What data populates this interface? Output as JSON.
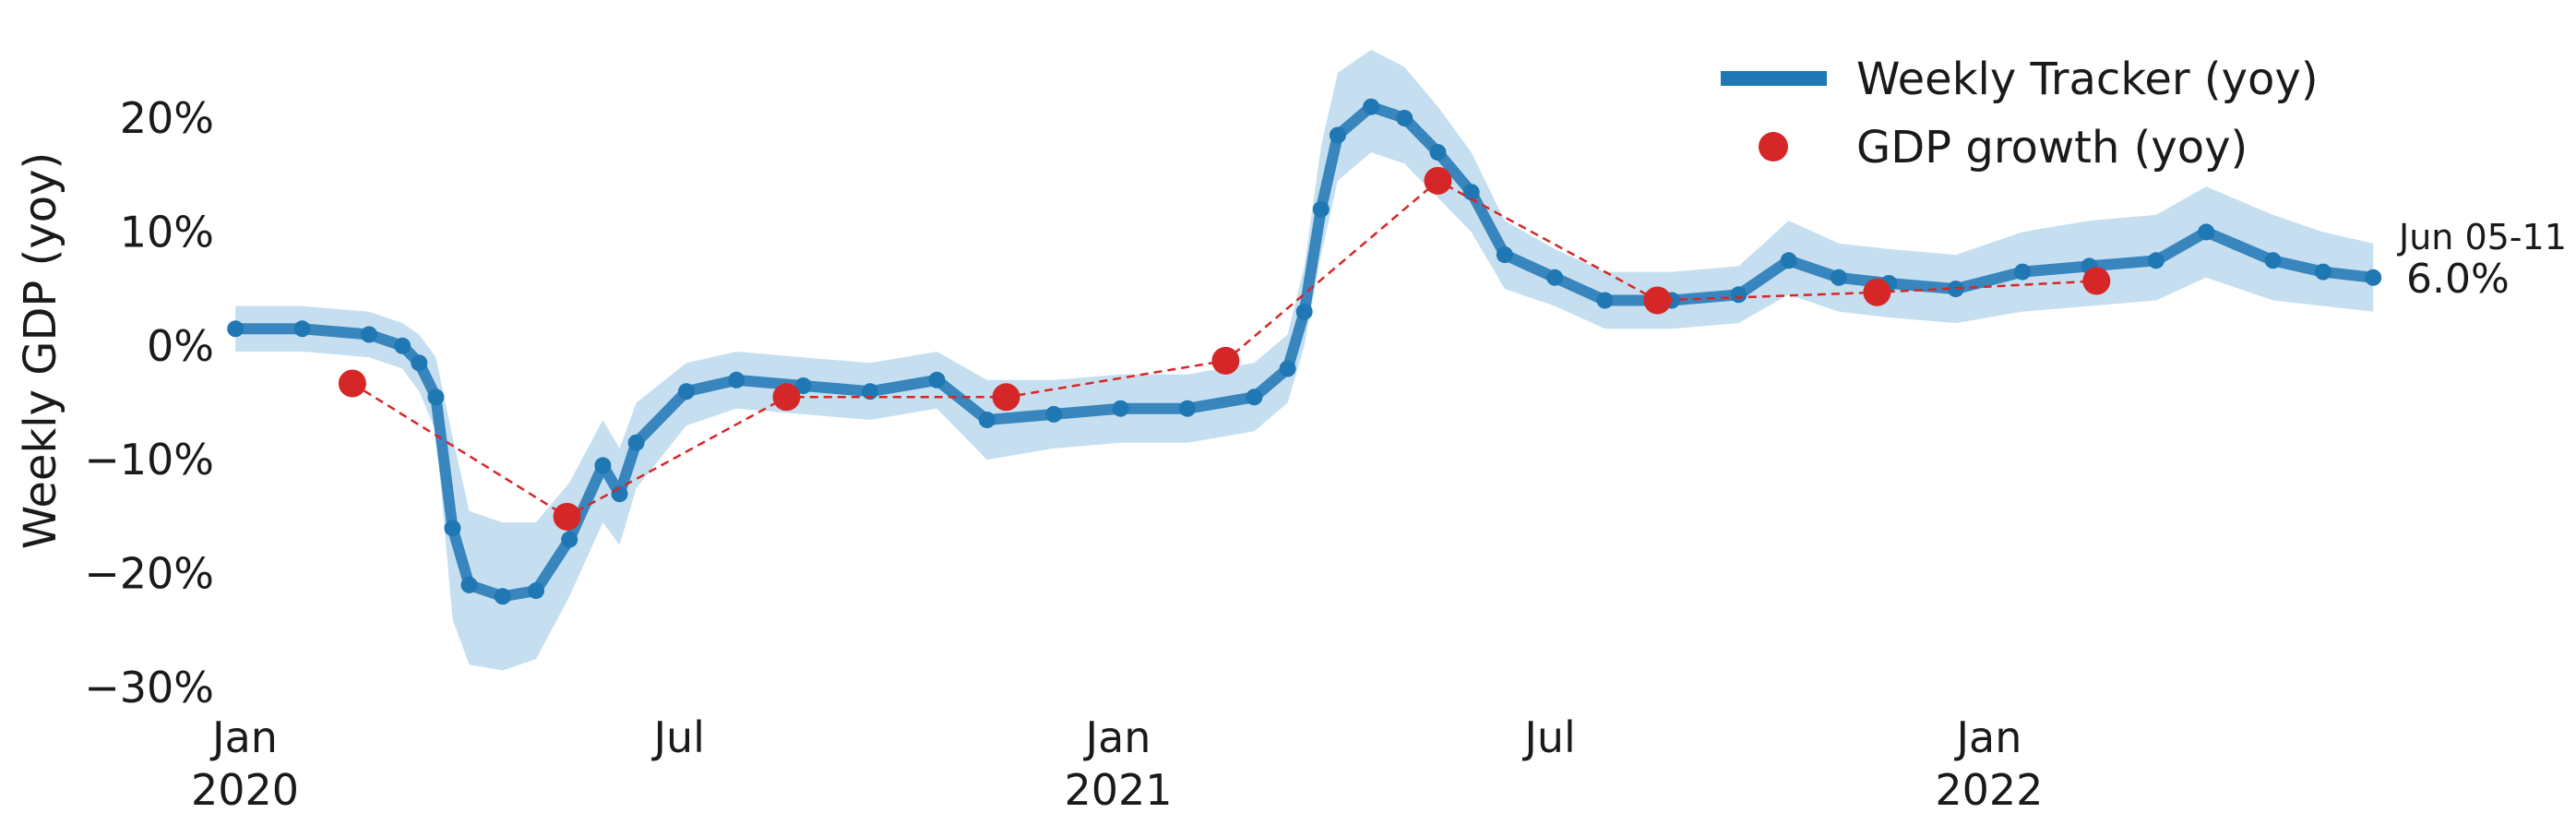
{
  "chart_data": {
    "type": "line",
    "title": "",
    "xlabel": "",
    "ylabel": "Weekly GDP (yoy)",
    "ylim": [
      -30,
      26
    ],
    "xlim": [
      "2019-12-26",
      "2022-06-14"
    ],
    "grid": false,
    "legend": "top-right",
    "x_ticks": [
      {
        "date": "2020-01-01",
        "label": "Jan",
        "sublabel": "2020"
      },
      {
        "date": "2020-07-01",
        "label": "Jul",
        "sublabel": ""
      },
      {
        "date": "2021-01-01",
        "label": "Jan",
        "sublabel": "2021"
      },
      {
        "date": "2021-07-01",
        "label": "Jul",
        "sublabel": ""
      },
      {
        "date": "2022-01-01",
        "label": "Jan",
        "sublabel": "2022"
      }
    ],
    "y_ticks": [
      {
        "value": 20,
        "label": "20%"
      },
      {
        "value": 10,
        "label": "10%"
      },
      {
        "value": 0,
        "label": "0%"
      },
      {
        "value": -10,
        "label": "−10%"
      },
      {
        "value": -20,
        "label": "−20%"
      },
      {
        "value": -30,
        "label": "−30%"
      }
    ],
    "series": [
      {
        "name": "Weekly Tracker (yoy)",
        "style": "line-with-markers",
        "color": "#1f77b4",
        "band_color": "#c6dff0",
        "points": [
          {
            "x": "2019-12-28",
            "y": 1.5,
            "lo": -0.5,
            "hi": 3.5
          },
          {
            "x": "2020-01-25",
            "y": 1.5,
            "lo": -0.5,
            "hi": 3.5
          },
          {
            "x": "2020-02-22",
            "y": 1.0,
            "lo": -1.0,
            "hi": 3.0
          },
          {
            "x": "2020-03-07",
            "y": 0.0,
            "lo": -2.0,
            "hi": 2.0
          },
          {
            "x": "2020-03-14",
            "y": -1.5,
            "lo": -4.0,
            "hi": 1.0
          },
          {
            "x": "2020-03-21",
            "y": -4.5,
            "lo": -7.5,
            "hi": -1.0
          },
          {
            "x": "2020-03-28",
            "y": -16.0,
            "lo": -24.0,
            "hi": -8.0
          },
          {
            "x": "2020-04-04",
            "y": -21.0,
            "lo": -28.0,
            "hi": -14.5
          },
          {
            "x": "2020-04-18",
            "y": -22.0,
            "lo": -28.5,
            "hi": -15.5
          },
          {
            "x": "2020-05-02",
            "y": -21.5,
            "lo": -27.5,
            "hi": -15.5
          },
          {
            "x": "2020-05-16",
            "y": -17.0,
            "lo": -22.0,
            "hi": -12.0
          },
          {
            "x": "2020-05-30",
            "y": -10.5,
            "lo": -15.5,
            "hi": -6.5
          },
          {
            "x": "2020-06-06",
            "y": -13.0,
            "lo": -17.5,
            "hi": -9.0
          },
          {
            "x": "2020-06-13",
            "y": -8.5,
            "lo": -12.5,
            "hi": -5.0
          },
          {
            "x": "2020-07-04",
            "y": -4.0,
            "lo": -7.0,
            "hi": -1.5
          },
          {
            "x": "2020-07-25",
            "y": -3.0,
            "lo": -5.5,
            "hi": -0.5
          },
          {
            "x": "2020-08-22",
            "y": -3.5,
            "lo": -6.0,
            "hi": -1.0
          },
          {
            "x": "2020-09-19",
            "y": -4.0,
            "lo": -6.5,
            "hi": -1.5
          },
          {
            "x": "2020-10-17",
            "y": -3.0,
            "lo": -5.5,
            "hi": -0.5
          },
          {
            "x": "2020-11-07",
            "y": -6.5,
            "lo": -10.0,
            "hi": -3.0
          },
          {
            "x": "2020-12-05",
            "y": -6.0,
            "lo": -9.0,
            "hi": -3.0
          },
          {
            "x": "2021-01-02",
            "y": -5.5,
            "lo": -8.5,
            "hi": -2.5
          },
          {
            "x": "2021-01-30",
            "y": -5.5,
            "lo": -8.5,
            "hi": -2.5
          },
          {
            "x": "2021-02-27",
            "y": -4.5,
            "lo": -7.5,
            "hi": -1.5
          },
          {
            "x": "2021-03-13",
            "y": -2.0,
            "lo": -5.0,
            "hi": 1.0
          },
          {
            "x": "2021-03-20",
            "y": 3.0,
            "lo": 0.0,
            "hi": 7.0
          },
          {
            "x": "2021-03-27",
            "y": 12.0,
            "lo": 8.0,
            "hi": 17.5
          },
          {
            "x": "2021-04-03",
            "y": 18.5,
            "lo": 14.5,
            "hi": 24.0
          },
          {
            "x": "2021-04-17",
            "y": 21.0,
            "lo": 17.0,
            "hi": 26.0
          },
          {
            "x": "2021-05-01",
            "y": 20.0,
            "lo": 16.0,
            "hi": 24.5
          },
          {
            "x": "2021-05-15",
            "y": 17.0,
            "lo": 13.0,
            "hi": 21.0
          },
          {
            "x": "2021-05-29",
            "y": 13.5,
            "lo": 10.0,
            "hi": 17.0
          },
          {
            "x": "2021-06-12",
            "y": 8.0,
            "lo": 5.0,
            "hi": 11.0
          },
          {
            "x": "2021-07-03",
            "y": 6.0,
            "lo": 3.5,
            "hi": 8.5
          },
          {
            "x": "2021-07-24",
            "y": 4.0,
            "lo": 1.5,
            "hi": 6.5
          },
          {
            "x": "2021-08-21",
            "y": 4.0,
            "lo": 1.5,
            "hi": 6.5
          },
          {
            "x": "2021-09-18",
            "y": 4.5,
            "lo": 2.0,
            "hi": 7.0
          },
          {
            "x": "2021-10-09",
            "y": 7.5,
            "lo": 4.5,
            "hi": 11.0
          },
          {
            "x": "2021-10-30",
            "y": 6.0,
            "lo": 3.0,
            "hi": 9.0
          },
          {
            "x": "2021-11-20",
            "y": 5.5,
            "lo": 2.5,
            "hi": 8.5
          },
          {
            "x": "2021-12-18",
            "y": 5.0,
            "lo": 2.0,
            "hi": 8.0
          },
          {
            "x": "2022-01-15",
            "y": 6.5,
            "lo": 3.0,
            "hi": 10.0
          },
          {
            "x": "2022-02-12",
            "y": 7.0,
            "lo": 3.5,
            "hi": 11.0
          },
          {
            "x": "2022-03-12",
            "y": 7.5,
            "lo": 4.0,
            "hi": 11.5
          },
          {
            "x": "2022-04-02",
            "y": 10.0,
            "lo": 6.0,
            "hi": 14.0
          },
          {
            "x": "2022-04-30",
            "y": 7.5,
            "lo": 4.0,
            "hi": 11.5
          },
          {
            "x": "2022-05-21",
            "y": 6.5,
            "lo": 3.5,
            "hi": 10.0
          },
          {
            "x": "2022-06-11",
            "y": 6.0,
            "lo": 3.0,
            "hi": 9.0
          }
        ]
      },
      {
        "name": "GDP growth (yoy)",
        "style": "markers-dashed",
        "color": "#d62728",
        "points": [
          {
            "x": "2020-02-15",
            "y": -3.3
          },
          {
            "x": "2020-05-15",
            "y": -15.0
          },
          {
            "x": "2020-08-15",
            "y": -4.5
          },
          {
            "x": "2020-11-15",
            "y": -4.5
          },
          {
            "x": "2021-02-15",
            "y": -1.3
          },
          {
            "x": "2021-05-15",
            "y": 14.5
          },
          {
            "x": "2021-08-15",
            "y": 4.0
          },
          {
            "x": "2021-11-15",
            "y": 4.7
          },
          {
            "x": "2022-02-15",
            "y": 5.7
          }
        ]
      }
    ],
    "annotation": {
      "date_label": "Jun 05-11",
      "value_label": "6.0%"
    }
  }
}
